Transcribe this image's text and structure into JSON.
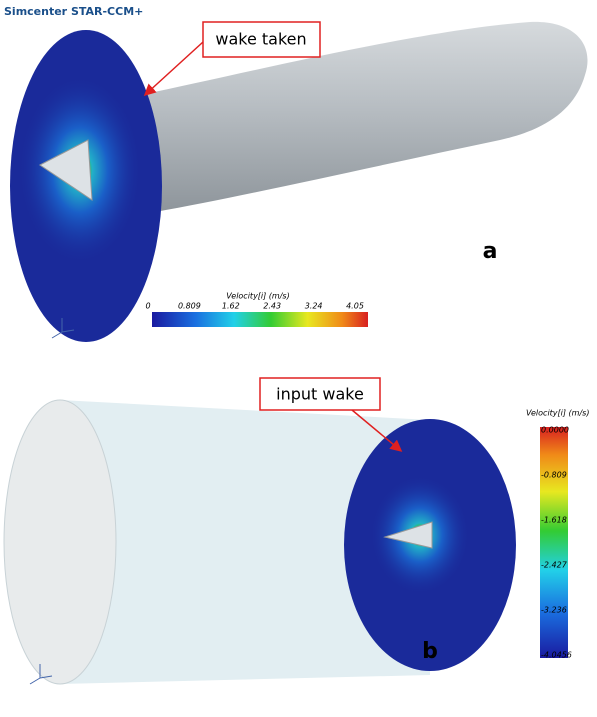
{
  "panel_a": {
    "software": "Simcenter STAR-CCM+",
    "callout": "wake taken",
    "letter": "a",
    "colorbar": {
      "title": "Velocity[i] (m/s)",
      "ticks": [
        "0",
        "0.809",
        "1.62",
        "2.43",
        "3.24",
        "4.05"
      ]
    }
  },
  "panel_b": {
    "callout": "input wake",
    "letter": "b",
    "colorbar": {
      "title": "Velocity[i] (m/s)",
      "ticks": [
        "0.0000",
        "-0.809",
        "-1.618",
        "-2.427",
        "-3.236",
        "-4.0456"
      ]
    }
  }
}
